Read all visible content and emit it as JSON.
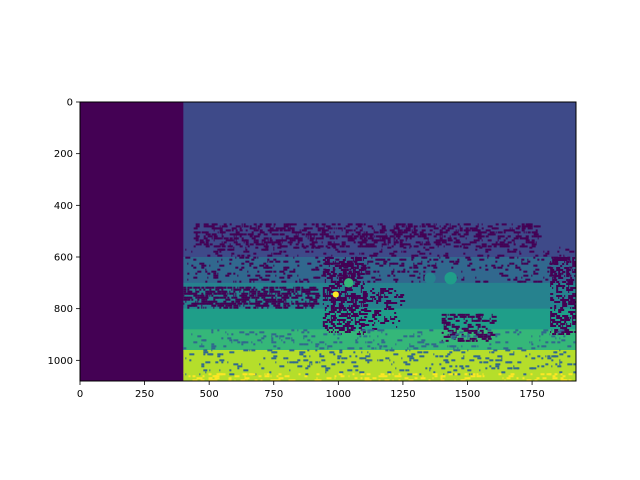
{
  "chart_data": {
    "type": "heatmap",
    "title": "",
    "xlabel": "",
    "ylabel": "",
    "image_width": 1920,
    "image_height": 1080,
    "xlim": [
      0,
      1920
    ],
    "ylim": [
      1080,
      0
    ],
    "x_ticks": [
      0,
      250,
      500,
      750,
      1000,
      1250,
      1500,
      1750
    ],
    "y_ticks": [
      0,
      200,
      400,
      600,
      800,
      1000
    ],
    "grid": false,
    "legend": "none",
    "colormap": "viridis",
    "palette": {
      "dark_purple": "#440154",
      "slate_blue": "#3e4a89",
      "blue": "#31688e",
      "teal": "#26828e",
      "green_teal": "#1f9e89",
      "green": "#35b779",
      "yellow_green": "#b5de2b",
      "yellow": "#fde725"
    },
    "regions": [
      {
        "x0": 0,
        "x1": 400,
        "y0": 0,
        "y1": 1080,
        "color": "dark_purple"
      },
      {
        "x0": 400,
        "x1": 1920,
        "y0": 0,
        "y1": 470,
        "color": "slate_blue"
      },
      {
        "x0": 400,
        "x1": 1920,
        "y0": 470,
        "y1": 600,
        "color": "slate_blue"
      },
      {
        "x0": 400,
        "x1": 1920,
        "y0": 600,
        "y1": 700,
        "color": "blue"
      },
      {
        "x0": 400,
        "x1": 1920,
        "y0": 700,
        "y1": 800,
        "color": "teal"
      },
      {
        "x0": 400,
        "x1": 1920,
        "y0": 800,
        "y1": 880,
        "color": "green_teal"
      },
      {
        "x0": 400,
        "x1": 1920,
        "y0": 880,
        "y1": 960,
        "color": "green"
      },
      {
        "x0": 400,
        "x1": 1920,
        "y0": 960,
        "y1": 1050,
        "color": "yellow_green"
      },
      {
        "x0": 400,
        "x1": 1920,
        "y0": 1050,
        "y1": 1080,
        "color": "yellow_green"
      }
    ],
    "artifacts": [
      {
        "x0": 440,
        "x1": 1780,
        "y0": 470,
        "y1": 560,
        "color": "dark_purple",
        "density": 0.35
      },
      {
        "x0": 400,
        "x1": 1900,
        "y0": 560,
        "y1": 700,
        "color": "dark_purple",
        "density": 0.12
      },
      {
        "x0": 400,
        "x1": 920,
        "y0": 715,
        "y1": 800,
        "color": "dark_purple",
        "density": 0.55
      },
      {
        "x0": 940,
        "x1": 1100,
        "y0": 600,
        "y1": 900,
        "color": "dark_purple",
        "density": 0.45
      },
      {
        "x0": 1100,
        "x1": 1250,
        "y0": 720,
        "y1": 880,
        "color": "dark_purple",
        "density": 0.2
      },
      {
        "x0": 1400,
        "x1": 1600,
        "y0": 820,
        "y1": 930,
        "color": "dark_purple",
        "density": 0.35
      },
      {
        "x0": 1820,
        "x1": 1920,
        "y0": 600,
        "y1": 900,
        "color": "dark_purple",
        "density": 0.4
      },
      {
        "x0": 400,
        "x1": 1920,
        "y0": 880,
        "y1": 1060,
        "color": "blue",
        "density": 0.1
      },
      {
        "x0": 420,
        "x1": 1900,
        "y0": 1050,
        "y1": 1080,
        "color": "yellow",
        "density": 0.15
      }
    ],
    "blobs": [
      {
        "cx": 1355,
        "cy": 682,
        "r": 22,
        "color": "teal"
      },
      {
        "cx": 1435,
        "cy": 682,
        "r": 24,
        "color": "green_teal"
      },
      {
        "cx": 990,
        "cy": 745,
        "r": 12,
        "color": "yellow"
      },
      {
        "cx": 1040,
        "cy": 700,
        "r": 18,
        "color": "green"
      }
    ]
  }
}
